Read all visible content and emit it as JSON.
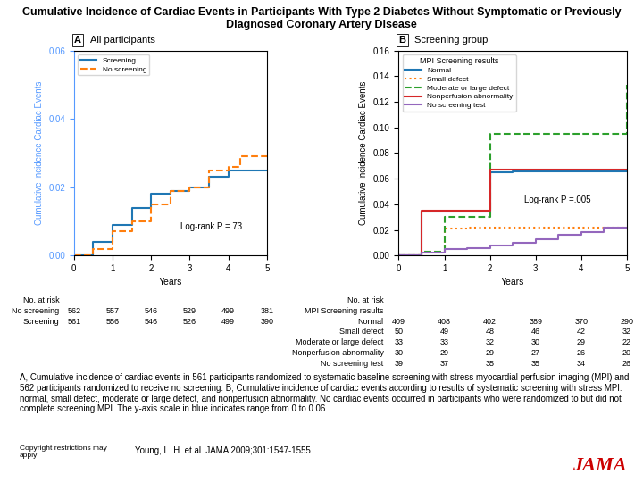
{
  "title": "Cumulative Incidence of Cardiac Events in Participants With Type 2 Diabetes Without Symptomatic or Previously Diagnosed Coronary Artery Disease",
  "annotations": [
    {
      "text": "A, Cumulative incidence of cardiac events in 561 participants randomized to systematic baseline screening with stress myocardial perfusion imaging (MPI) and 562 participants randomized to receive no screening. B, Cumulative incidence of cardiac events according to results of systematic screening with stress MPI: normal, small defect, moderate or large defect, and nonperfusion abnormality. No cardiac events occurred in participants who were randomized to but did not complete screening MPI. The y-axis scale in blue indicates range from 0 to 0.06."
    },
    {
      "text": "Copyright restrictions may\napply"
    },
    {
      "text": "Young, L. H. et al. JAMA 2009;301:1547-1555."
    },
    {
      "text": "JAMA",
      "color": "#cc0000"
    }
  ],
  "chart_data": [
    {
      "type": "step",
      "panel_label": "A",
      "title": "All participants",
      "x_label": "Years",
      "y_label": "Cumulative Incidence Cardiac Events",
      "color": "#5599ff",
      "xlim": [
        0,
        5
      ],
      "xticks": [
        0,
        1,
        2,
        3,
        4,
        5
      ],
      "ylim": [
        0,
        0.06
      ],
      "yticks": [
        {
          "value": 0,
          "label": "0.00"
        },
        0.02,
        0.04,
        0.06
      ],
      "legend": "upper left",
      "annotations": [
        "Log-rank P =.73"
      ],
      "series": [
        {
          "name": "Screening",
          "line_style": "solid",
          "x": [
            0,
            0.5,
            1.0,
            1.5,
            2.0,
            2.5,
            3.0,
            3.5,
            4.0,
            4.5,
            5.0
          ],
          "values": [
            0,
            0.004,
            0.009,
            0.014,
            0.018,
            0.019,
            0.02,
            0.023,
            0.025,
            0.025,
            0.025
          ]
        },
        {
          "name": "No screening",
          "line_style": "dashed",
          "x": [
            0,
            0.5,
            1.0,
            1.5,
            2.0,
            2.5,
            3.0,
            3.5,
            4.0,
            4.3,
            5.0
          ],
          "values": [
            0,
            0.002,
            0.007,
            0.01,
            0.015,
            0.019,
            0.02,
            0.025,
            0.026,
            0.029,
            0.029
          ]
        }
      ],
      "at_risk": {
        "title": "No. at risk",
        "rows": [
          {
            "name": "No screening",
            "values": [
              562,
              557,
              546,
              529,
              499,
              381
            ]
          },
          {
            "name": "Screening",
            "values": [
              561,
              556,
              546,
              526,
              499,
              390
            ]
          }
        ]
      }
    },
    {
      "type": "step",
      "panel_label": "B",
      "title": "Screening group",
      "x_label": "Years",
      "y_label": "Cumulative Incidence Cardiac Events",
      "xlim": [
        0,
        5
      ],
      "xticks": [
        0,
        1,
        2,
        3,
        4,
        5
      ],
      "ylim": [
        0,
        0.16
      ],
      "yticks": [
        {
          "value": 0,
          "label": "0.00"
        },
        0.02,
        0.04,
        0.06,
        0.08,
        {
          "value": 0.1,
          "label": "0.10"
        },
        0.12,
        0.14,
        0.16
      ],
      "legend": "upper left",
      "legend_title": "MPI Screening results",
      "annotations": [
        "Log-rank P =.005"
      ],
      "series": [
        {
          "name": "Normal",
          "line_style": "solid",
          "x": [
            0,
            0.5,
            1.0,
            2.0,
            2.5,
            5.0
          ],
          "values": [
            0,
            0.034,
            0.034,
            0.065,
            0.066,
            0.066
          ]
        },
        {
          "name": "Small defect",
          "line_style": "dotted",
          "x": [
            0,
            0.5,
            1.0,
            1.5,
            2.0,
            5.0
          ],
          "values": [
            0,
            0.003,
            0.021,
            0.022,
            0.022,
            0.022
          ]
        },
        {
          "name": "Moderate or large defect",
          "line_style": "dashed",
          "x": [
            0,
            0.5,
            1.0,
            1.5,
            2.0,
            5.0
          ],
          "values": [
            0,
            0.003,
            0.03,
            0.03,
            0.095,
            0.133
          ]
        },
        {
          "name": "Nonperfusion abnormality",
          "line_style": "solid",
          "x": [
            0,
            0.5,
            1.0,
            2.0,
            2.5,
            5.0
          ],
          "values": [
            0,
            0.035,
            0.035,
            0.067,
            0.067,
            0.067
          ]
        },
        {
          "name": "No screening test",
          "line_style": "solid",
          "x": [
            0,
            0.5,
            1.0,
            1.5,
            2.0,
            2.5,
            3.0,
            3.5,
            4.0,
            4.5,
            5.0
          ],
          "values": [
            0,
            0.002,
            0.005,
            0.006,
            0.008,
            0.01,
            0.013,
            0.016,
            0.018,
            0.022,
            0.022
          ]
        }
      ],
      "at_risk": {
        "title": "No. at risk",
        "subtitle": "MPI Screening results",
        "rows": [
          {
            "name": "Normal",
            "values": [
              409,
              408,
              402,
              389,
              370,
              290
            ]
          },
          {
            "name": "Small defect",
            "values": [
              50,
              49,
              48,
              46,
              42,
              32
            ]
          },
          {
            "name": "Moderate or large defect",
            "values": [
              33,
              33,
              32,
              30,
              29,
              22
            ]
          },
          {
            "name": "Nonperfusion abnormality",
            "values": [
              30,
              29,
              29,
              27,
              26,
              20
            ]
          },
          {
            "name": "No screening test",
            "values": [
              39,
              37,
              35,
              35,
              34,
              26
            ]
          }
        ]
      }
    }
  ]
}
